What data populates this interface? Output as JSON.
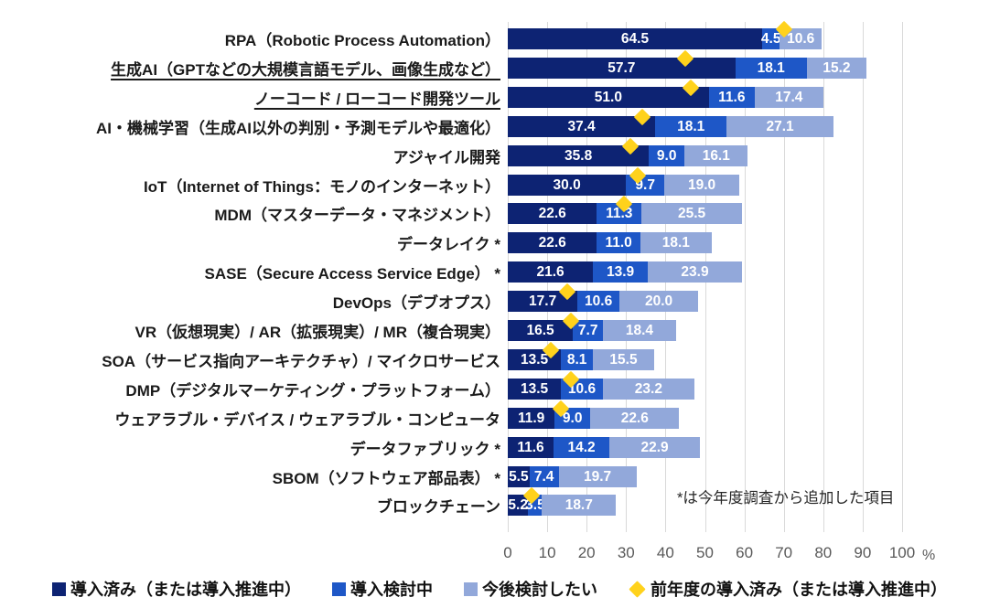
{
  "chart_data": {
    "type": "bar",
    "orientation": "horizontal",
    "stacked": true,
    "title": "",
    "xlabel": "%",
    "xlim": [
      0,
      100
    ],
    "x_ticks": [
      0,
      10,
      20,
      30,
      40,
      50,
      60,
      70,
      80,
      90,
      100
    ],
    "x_unit_label": "%",
    "grid": true,
    "legend_position": "bottom",
    "series_names": [
      "導入済み（または導入推進中）",
      "導入検討中",
      "今後検討したい"
    ],
    "marker_series_name": "前年度の導入済み（または導入推進中）",
    "annotation": "*は今年度調査から追加した項目",
    "rows": [
      {
        "label": "RPA（Robotic Process Automation）",
        "underlined": false,
        "values": [
          64.5,
          4.5,
          10.6
        ],
        "prev_year": 70
      },
      {
        "label": "生成AI（GPTなどの大規模言語モデル、画像生成など）",
        "underlined": true,
        "values": [
          57.7,
          18.1,
          15.2
        ],
        "prev_year": 45
      },
      {
        "label": "ノーコード / ローコード開発ツール",
        "underlined": true,
        "values": [
          51.0,
          11.6,
          17.4
        ],
        "prev_year": 46.5
      },
      {
        "label": "AI・機械学習（生成AI以外の判別・予測モデルや最適化）",
        "underlined": false,
        "values": [
          37.4,
          18.1,
          27.1
        ],
        "prev_year": 34
      },
      {
        "label": "アジャイル開発",
        "underlined": false,
        "values": [
          35.8,
          9.0,
          16.1
        ],
        "prev_year": 31
      },
      {
        "label": "IoT（Internet of Things：モノのインターネット）",
        "underlined": false,
        "values": [
          30.0,
          9.7,
          19.0
        ],
        "prev_year": 33
      },
      {
        "label": "MDM（マスターデータ・マネジメント）",
        "underlined": false,
        "values": [
          22.6,
          11.3,
          25.5
        ],
        "prev_year": 29.5
      },
      {
        "label": "データレイク *",
        "underlined": false,
        "values": [
          22.6,
          11.0,
          18.1
        ],
        "prev_year": null
      },
      {
        "label": "SASE（Secure Access Service Edge） *",
        "underlined": false,
        "values": [
          21.6,
          13.9,
          23.9
        ],
        "prev_year": null
      },
      {
        "label": "DevOps（デブオプス）",
        "underlined": false,
        "values": [
          17.7,
          10.6,
          20.0
        ],
        "prev_year": 15
      },
      {
        "label": "VR（仮想現実）/ AR（拡張現実）/ MR（複合現実）",
        "underlined": false,
        "values": [
          16.5,
          7.7,
          18.4
        ],
        "prev_year": 16
      },
      {
        "label": "SOA（サービス指向アーキテクチャ）/ マイクロサービス",
        "underlined": false,
        "values": [
          13.5,
          8.1,
          15.5
        ],
        "prev_year": 11
      },
      {
        "label": "DMP（デジタルマーケティング・プラットフォーム）",
        "underlined": false,
        "values": [
          13.5,
          10.6,
          23.2
        ],
        "prev_year": 16
      },
      {
        "label": "ウェアラブル・デバイス / ウェアラブル・コンピュータ",
        "underlined": false,
        "values": [
          11.9,
          9.0,
          22.6
        ],
        "prev_year": 13.5
      },
      {
        "label": "データファブリック *",
        "underlined": false,
        "values": [
          11.6,
          14.2,
          22.9
        ],
        "prev_year": null
      },
      {
        "label": "SBOM（ソフトウェア部品表） *",
        "underlined": false,
        "values": [
          5.5,
          7.4,
          19.7
        ],
        "prev_year": null
      },
      {
        "label": "ブロックチェーン",
        "underlined": false,
        "values": [
          5.2,
          3.5,
          18.7
        ],
        "prev_year": 6
      }
    ]
  },
  "legend": {
    "items": [
      {
        "label": "導入済み（または導入推進中）",
        "marker": "square",
        "color_key": "installed"
      },
      {
        "label": "導入検討中",
        "marker": "square",
        "color_key": "considering"
      },
      {
        "label": "今後検討したい",
        "marker": "square",
        "color_key": "future"
      },
      {
        "label": "前年度の導入済み（または導入推進中）",
        "marker": "diamond",
        "color_key": "prev_marker"
      }
    ]
  },
  "colors": {
    "installed": "#0d2373",
    "considering": "#1e57c7",
    "future": "#92a8da",
    "prev_marker": "#ffd21c",
    "grid": "#d9d9d9",
    "axis_text": "#595959",
    "bar_value_text": "#ffffff",
    "category_text": "#1a1a1a"
  }
}
